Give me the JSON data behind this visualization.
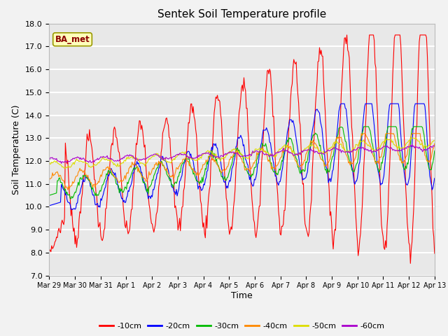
{
  "title": "Sentek Soil Temperature profile",
  "xlabel": "Time",
  "ylabel": "Soil Temperature (C)",
  "ylim": [
    7.0,
    18.0
  ],
  "yticks": [
    7.0,
    8.0,
    9.0,
    10.0,
    11.0,
    12.0,
    13.0,
    14.0,
    15.0,
    16.0,
    17.0,
    18.0
  ],
  "x_labels": [
    "Mar 29",
    "Mar 30",
    "Mar 31",
    "Apr 1",
    "Apr 2",
    "Apr 3",
    "Apr 4",
    "Apr 5",
    "Apr 6",
    "Apr 7",
    "Apr 8",
    "Apr 9",
    "Apr 10",
    "Apr 11",
    "Apr 12",
    "Apr 13"
  ],
  "legend_label": "BA_met",
  "legend_entries": [
    "-10cm",
    "-20cm",
    "-30cm",
    "-40cm",
    "-50cm",
    "-60cm"
  ],
  "line_colors": [
    "#ff0000",
    "#0000ff",
    "#00bb00",
    "#ff8800",
    "#dddd00",
    "#aa00cc"
  ],
  "plot_bg_color": "#e8e8e8",
  "fig_bg_color": "#f2f2f2",
  "grid_color": "#ffffff",
  "n_points": 480
}
